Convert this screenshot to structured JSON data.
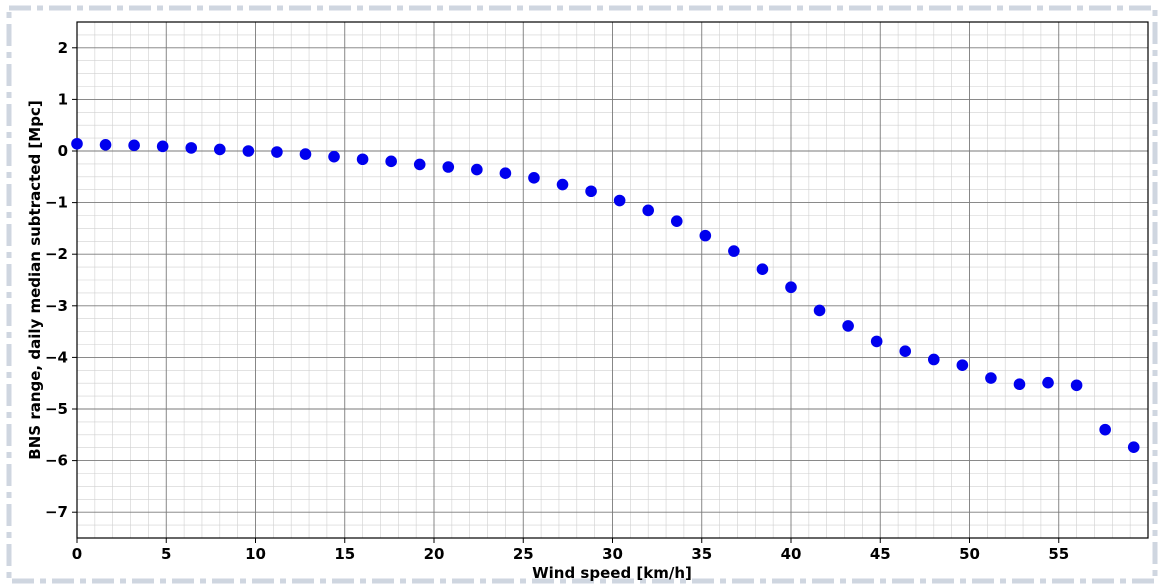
{
  "chart_data": {
    "type": "scatter",
    "title": "",
    "xlabel": "Wind speed [km/h]",
    "ylabel": "BNS range, daily median subtracted [Mpc]",
    "xlim": [
      0,
      60
    ],
    "ylim": [
      -7.5,
      2.5
    ],
    "x_ticks": [
      0,
      5,
      10,
      15,
      20,
      25,
      30,
      35,
      40,
      45,
      50,
      55
    ],
    "x_tick_labels": [
      "0",
      "5",
      "10",
      "15",
      "20",
      "25",
      "30",
      "35",
      "40",
      "45",
      "50",
      "55"
    ],
    "y_ticks": [
      2,
      1,
      0,
      -1,
      -2,
      -3,
      -4,
      -5,
      -6,
      -7
    ],
    "y_tick_labels": [
      "2",
      "1",
      "0",
      "−1",
      "−2",
      "−3",
      "−4",
      "−5",
      "−6",
      "−7"
    ],
    "grid": true,
    "marker_color": "#0000ee",
    "points": [
      [
        0.0,
        0.14
      ],
      [
        1.6,
        0.12
      ],
      [
        3.2,
        0.11
      ],
      [
        4.8,
        0.09
      ],
      [
        6.4,
        0.06
      ],
      [
        8.0,
        0.03
      ],
      [
        9.6,
        0.0
      ],
      [
        11.2,
        -0.02
      ],
      [
        12.8,
        -0.06
      ],
      [
        14.4,
        -0.11
      ],
      [
        16.0,
        -0.16
      ],
      [
        17.6,
        -0.2
      ],
      [
        19.2,
        -0.26
      ],
      [
        20.8,
        -0.31
      ],
      [
        22.4,
        -0.36
      ],
      [
        24.0,
        -0.43
      ],
      [
        25.6,
        -0.52
      ],
      [
        27.2,
        -0.65
      ],
      [
        28.8,
        -0.78
      ],
      [
        30.4,
        -0.96
      ],
      [
        32.0,
        -1.15
      ],
      [
        33.6,
        -1.36
      ],
      [
        35.2,
        -1.64
      ],
      [
        36.8,
        -1.94
      ],
      [
        38.4,
        -2.29
      ],
      [
        40.0,
        -2.64
      ],
      [
        41.6,
        -3.09
      ],
      [
        43.2,
        -3.39
      ],
      [
        44.8,
        -3.69
      ],
      [
        46.4,
        -3.88
      ],
      [
        48.0,
        -4.04
      ],
      [
        49.6,
        -4.15
      ],
      [
        51.2,
        -4.4
      ],
      [
        52.8,
        -4.52
      ],
      [
        54.4,
        -4.49
      ],
      [
        56.0,
        -4.54
      ],
      [
        57.6,
        -5.4
      ],
      [
        59.2,
        -5.74
      ]
    ]
  }
}
